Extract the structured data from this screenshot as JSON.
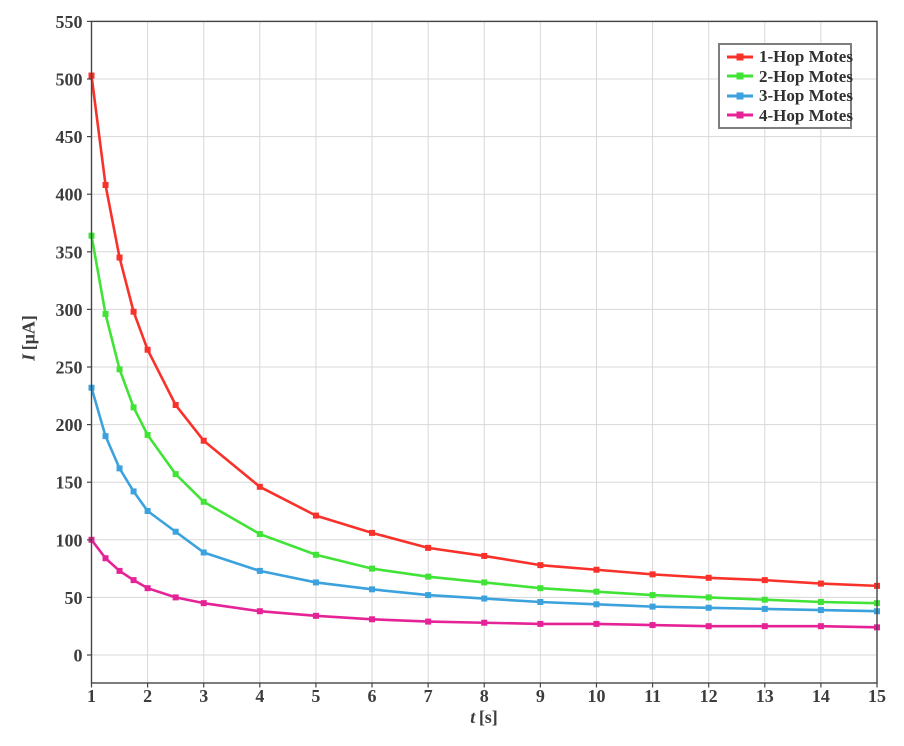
{
  "chart_data": {
    "type": "line",
    "title": "",
    "xlabel_var": "t",
    "xlabel_unit": "[s]",
    "ylabel_var": "I",
    "ylabel_unit": "[μA]",
    "xlim": [
      1,
      15
    ],
    "ylim": [
      0,
      550
    ],
    "grid": true,
    "legend_position": "top-right",
    "marker": "square",
    "x_ticks": [
      1,
      2,
      3,
      4,
      5,
      6,
      7,
      8,
      9,
      10,
      11,
      12,
      13,
      14,
      15
    ],
    "y_ticks": [
      0,
      50,
      100,
      150,
      200,
      250,
      300,
      350,
      400,
      450,
      500,
      550
    ],
    "x": [
      1,
      1.25,
      1.5,
      1.75,
      2,
      2.5,
      3,
      4,
      5,
      6,
      7,
      8,
      9,
      10,
      11,
      12,
      13,
      14,
      15
    ],
    "series": [
      {
        "name": "1-Hop Motes",
        "color": "#F8322B",
        "values": [
          503,
          408,
          345,
          298,
          265,
          217,
          186,
          146,
          121,
          106,
          93,
          86,
          78,
          74,
          70,
          67,
          65,
          62,
          60
        ]
      },
      {
        "name": "2-Hop Motes",
        "color": "#41E337",
        "values": [
          364,
          296,
          248,
          215,
          191,
          157,
          133,
          105,
          87,
          75,
          68,
          63,
          58,
          55,
          52,
          50,
          48,
          46,
          45
        ]
      },
      {
        "name": "3-Hop Motes",
        "color": "#3BA2DE",
        "values": [
          232,
          190,
          162,
          142,
          125,
          107,
          89,
          73,
          63,
          57,
          52,
          49,
          46,
          44,
          42,
          41,
          40,
          39,
          38
        ]
      },
      {
        "name": "4-Hop Motes",
        "color": "#E52397",
        "values": [
          100,
          84,
          73,
          65,
          58,
          50,
          45,
          38,
          34,
          31,
          29,
          28,
          27,
          27,
          26,
          25,
          25,
          25,
          24
        ]
      }
    ],
    "colors": {
      "grid": "#d8d8d8",
      "frame": "#454545",
      "text": "#3d3d3d",
      "legend_border": "#7e7e7e",
      "background": "#ffffff"
    }
  }
}
